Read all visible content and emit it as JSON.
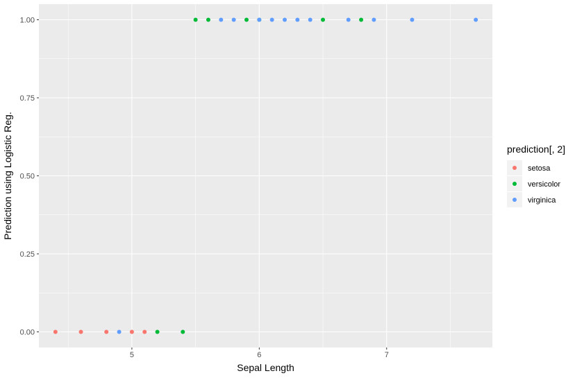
{
  "chart_data": {
    "type": "scatter",
    "xlabel": "Sepal Length",
    "ylabel": "Prediction using Logistic Reg.",
    "xlim": [
      4.27,
      7.83
    ],
    "ylim": [
      -0.05,
      1.05
    ],
    "x_ticks": [
      5,
      6,
      7
    ],
    "x_tick_labels": [
      "5",
      "6",
      "7"
    ],
    "x_minor_ticks": [
      4.5,
      5.5,
      6.5,
      7.5
    ],
    "y_ticks": [
      0,
      0.25,
      0.5,
      0.75,
      1
    ],
    "y_tick_labels": [
      "0.00",
      "0.25",
      "0.50",
      "0.75",
      "1.00"
    ],
    "y_minor_ticks": [
      0.125,
      0.375,
      0.625,
      0.875
    ],
    "grid": true,
    "legend": {
      "title": "prediction[, 2]",
      "position": "right"
    },
    "series": [
      {
        "name": "setosa",
        "color": "#F8766D",
        "points": [
          [
            4.4,
            0
          ],
          [
            4.6,
            0
          ],
          [
            4.8,
            0
          ],
          [
            5.0,
            0
          ],
          [
            5.1,
            0
          ]
        ]
      },
      {
        "name": "versicolor",
        "color": "#00BA38",
        "points": [
          [
            5.2,
            0
          ],
          [
            5.4,
            0
          ],
          [
            5.5,
            1
          ],
          [
            5.6,
            1
          ],
          [
            5.9,
            1
          ],
          [
            6.0,
            1
          ],
          [
            6.5,
            1
          ],
          [
            6.8,
            1
          ]
        ]
      },
      {
        "name": "virginica",
        "color": "#619CFF",
        "points": [
          [
            4.9,
            0
          ],
          [
            5.7,
            1
          ],
          [
            5.8,
            1
          ],
          [
            6.0,
            1
          ],
          [
            6.1,
            1
          ],
          [
            6.2,
            1
          ],
          [
            6.3,
            1
          ],
          [
            6.4,
            1
          ],
          [
            6.7,
            1
          ],
          [
            6.9,
            1
          ],
          [
            7.2,
            1
          ],
          [
            7.7,
            1
          ]
        ]
      }
    ]
  }
}
